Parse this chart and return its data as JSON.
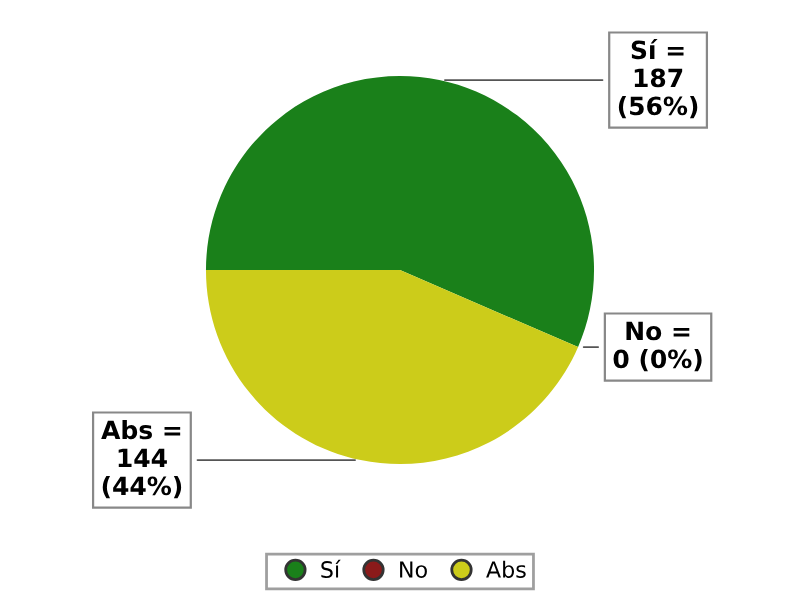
{
  "chart_data": {
    "type": "pie",
    "categories": [
      "Sí",
      "No",
      "Abs"
    ],
    "values": [
      187,
      0,
      144
    ],
    "colors": [
      "#1a801a",
      "#8b1a1a",
      "#cccc1a"
    ],
    "value_labels": [
      "Sí =\n187\n(56%)",
      "No =\n0 (0%)",
      "Abs =\n144\n(44%)"
    ],
    "legend": "bottom"
  }
}
